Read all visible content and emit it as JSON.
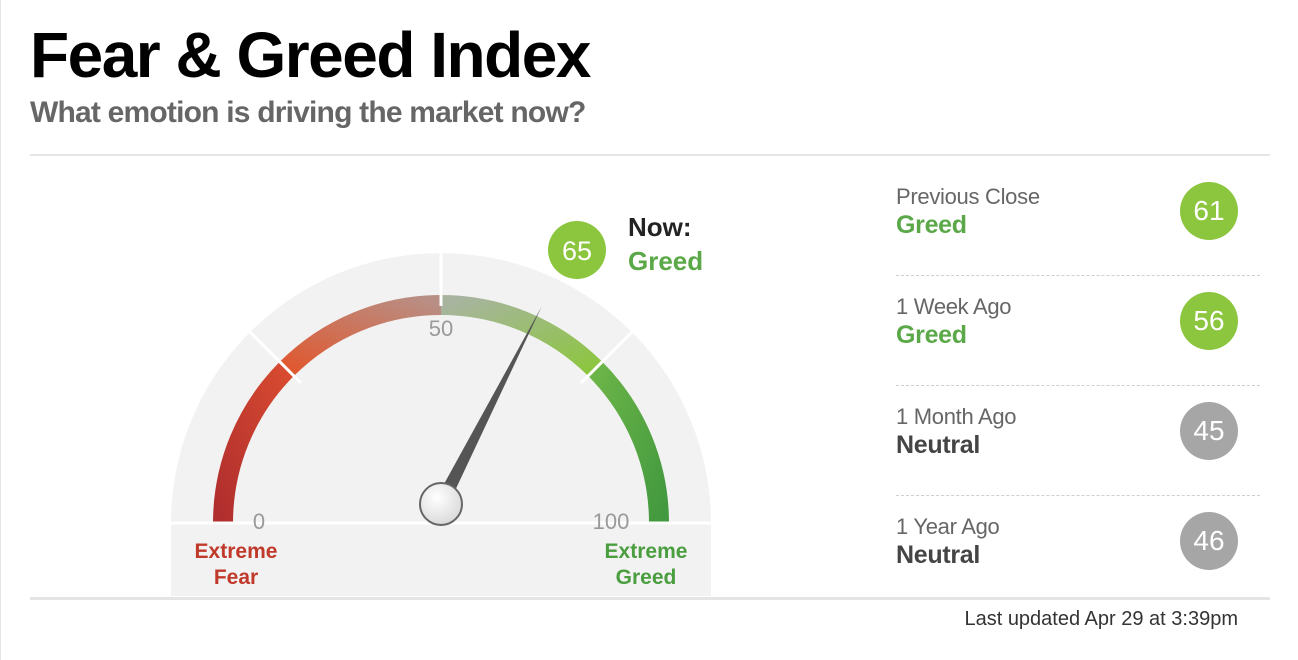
{
  "header": {
    "title": "Fear & Greed Index",
    "subtitle": "What emotion is driving the market now?"
  },
  "gauge": {
    "value": 65,
    "value_label": "65",
    "now_label": "Now:",
    "now_rating": "Greed",
    "min_label": "0",
    "mid_label": "50",
    "max_label": "100",
    "left_caption_line1": "Extreme",
    "left_caption_line2": "Fear",
    "right_caption_line1": "Extreme",
    "right_caption_line2": "Greed"
  },
  "history": [
    {
      "label": "Previous Close",
      "rating": "Greed",
      "value": "61",
      "badge_color": "#8cc63f",
      "rating_color": "#5aa848"
    },
    {
      "label": "1 Week Ago",
      "rating": "Greed",
      "value": "56",
      "badge_color": "#8cc63f",
      "rating_color": "#5aa848"
    },
    {
      "label": "1 Month Ago",
      "rating": "Neutral",
      "value": "45",
      "badge_color": "#a6a6a6",
      "rating_color": "#444444"
    },
    {
      "label": "1 Year Ago",
      "rating": "Neutral",
      "value": "46",
      "badge_color": "#a6a6a6",
      "rating_color": "#444444"
    }
  ],
  "footer": {
    "updated": "Last updated Apr 29 at 3:39pm"
  },
  "colors": {
    "extreme_fear": "#b8312f",
    "fear": "#e8622f",
    "neutral": "#bfbfbf",
    "greed": "#8cc63f",
    "extreme_greed": "#4a9e3f",
    "needle": "#555555"
  }
}
